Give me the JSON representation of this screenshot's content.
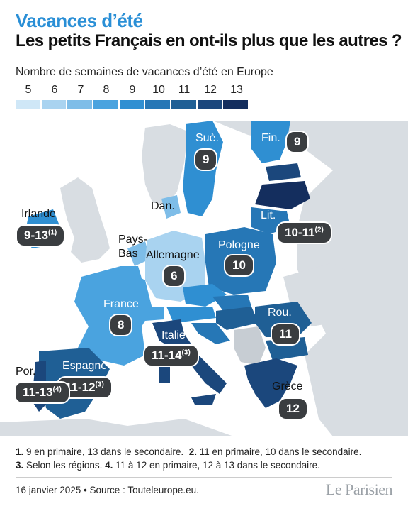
{
  "header": {
    "kicker": "Vacances d’été",
    "title": "Les petits Français en ont-ils plus que les autres ?"
  },
  "legend": {
    "title": "Nombre de semaines de vacances d’été en Europe",
    "steps": [
      "5",
      "6",
      "7",
      "8",
      "9",
      "10",
      "11",
      "12",
      "13"
    ],
    "colors": [
      "#cfe7f7",
      "#a9d3f0",
      "#7ebde8",
      "#4aa3df",
      "#2f8fd2",
      "#2677b6",
      "#1f5f95",
      "#1b477c",
      "#142e5e"
    ]
  },
  "map": {
    "colors": {
      "sea": "#ffffff",
      "land_other": "#d8dde2",
      "grey_dark": "#c7cdd3"
    },
    "countries": [
      {
        "id": "ireland",
        "label": "Irlande",
        "value": "9-13",
        "note": "(1)"
      },
      {
        "id": "portugal",
        "label": "Por.",
        "value": "11-13",
        "note": "(4)"
      },
      {
        "id": "spain",
        "label": "Espagne",
        "value": "11-12",
        "note": "(3)"
      },
      {
        "id": "france",
        "label": "France",
        "value": "8",
        "note": ""
      },
      {
        "id": "germany",
        "label": "Allemagne",
        "value": "6",
        "note": ""
      },
      {
        "id": "netherlands",
        "label": "Pays-\nBas",
        "value": "",
        "note": ""
      },
      {
        "id": "denmark",
        "label": "Dan.",
        "value": "",
        "note": ""
      },
      {
        "id": "sweden",
        "label": "Suè.",
        "value": "9",
        "note": ""
      },
      {
        "id": "finland",
        "label": "Fin.",
        "value": "9",
        "note": ""
      },
      {
        "id": "lithuania",
        "label": "Lit.",
        "value": "10-11",
        "note": "(2)"
      },
      {
        "id": "poland",
        "label": "Pologne",
        "value": "10",
        "note": ""
      },
      {
        "id": "italy",
        "label": "Italie",
        "value": "11-14",
        "note": "(3)"
      },
      {
        "id": "romania",
        "label": "Rou.",
        "value": "11",
        "note": ""
      },
      {
        "id": "greece",
        "label": "Grèce",
        "value": "12",
        "note": ""
      }
    ]
  },
  "notes": {
    "n1_num": "1.",
    "n1_text": "9 en primaire, 13 dans le secondaire.",
    "n2_num": "2.",
    "n2_text": "11 en primaire, 10 dans le secondaire.",
    "n3_num": "3.",
    "n3_text": "Selon les régions.",
    "n4_num": "4.",
    "n4_text": "11 à 12 en primaire, 12 à 13 dans le secondaire."
  },
  "footer": {
    "source": "16 janvier 2025 • Source : Touteleurope.eu.",
    "logo": "Le Parisien"
  }
}
